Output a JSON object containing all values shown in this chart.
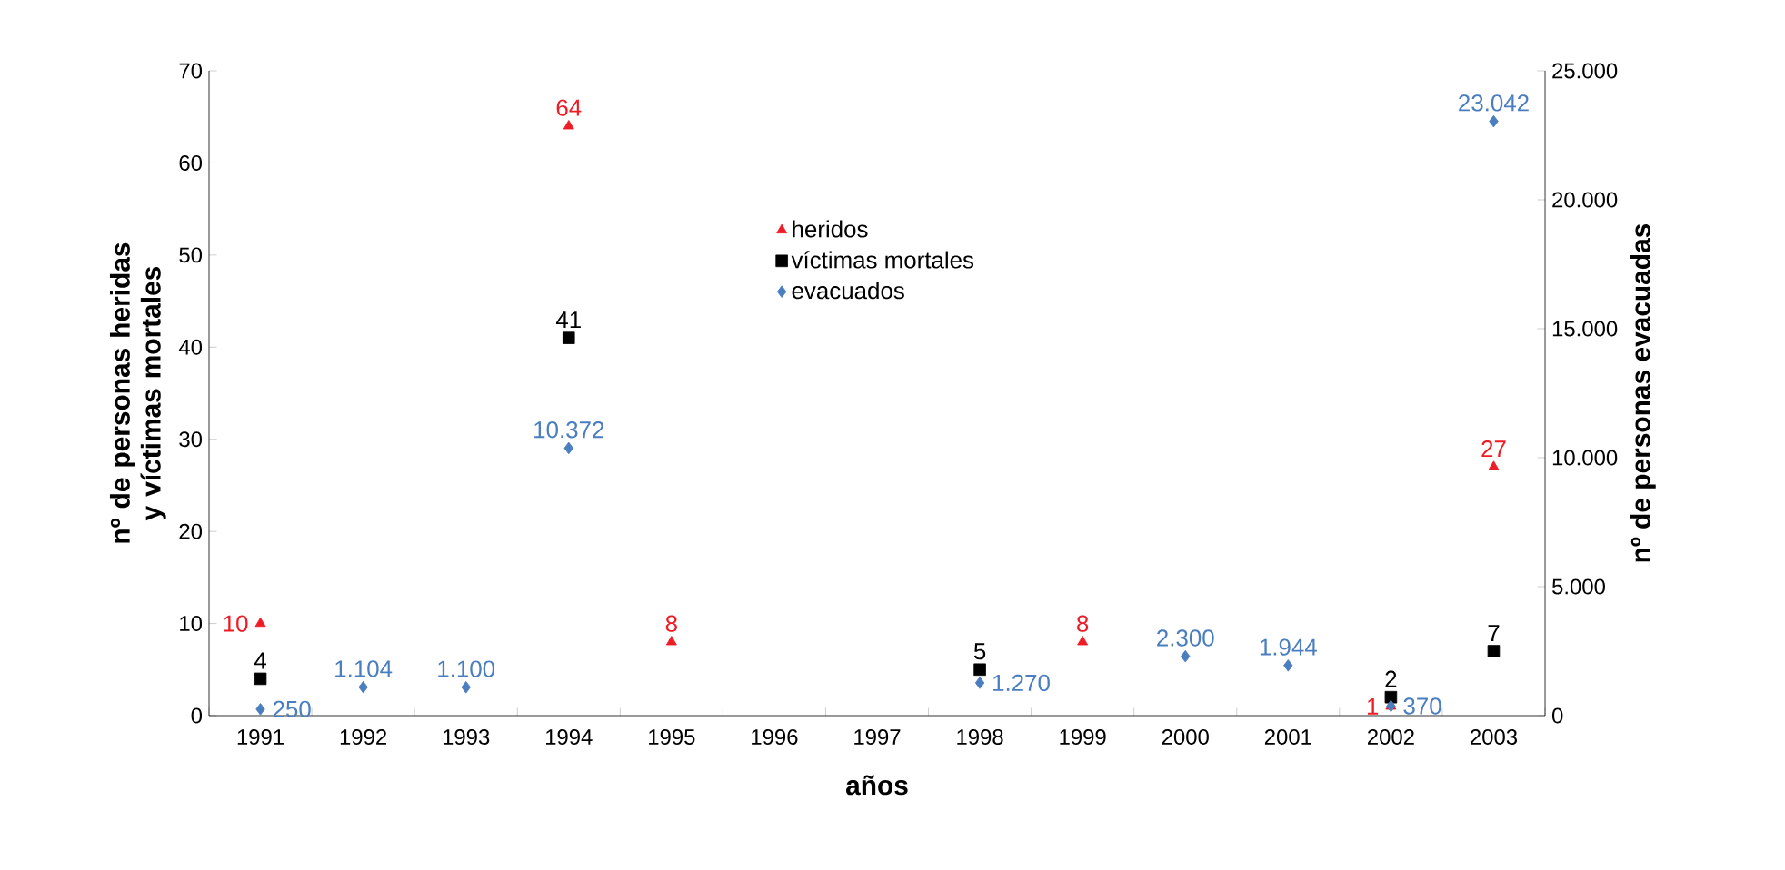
{
  "chart_data": {
    "type": "scatter",
    "xlabel": "años",
    "ylabel": "nº de personas heridas y víctimas mortales",
    "y2label": "nº de personas evacuadas",
    "categories": [
      "1991",
      "1992",
      "1993",
      "1994",
      "1995",
      "1996",
      "1997",
      "1998",
      "1999",
      "2000",
      "2001",
      "2002",
      "2003"
    ],
    "ylim": [
      0,
      70
    ],
    "yticks": [
      0,
      10,
      20,
      30,
      40,
      50,
      60,
      70
    ],
    "y2lim": [
      0,
      25000
    ],
    "y2ticks": [
      0,
      {
        "value": 5000,
        "label": "5.000"
      },
      {
        "value": 10000,
        "label": "10.000"
      },
      {
        "value": 15000,
        "label": "15.000"
      },
      {
        "value": 20000,
        "label": "20.000"
      },
      {
        "value": 25000,
        "label": "25.000"
      }
    ],
    "grid": false,
    "legend": "top",
    "series": [
      {
        "name": "heridos",
        "color": "#ee1c25",
        "marker": "triangle",
        "values": [
          10,
          null,
          null,
          64,
          8,
          null,
          null,
          null,
          8,
          null,
          null,
          1,
          27
        ],
        "value_labels": [
          "10",
          null,
          null,
          "64",
          "8",
          null,
          null,
          null,
          "8",
          null,
          null,
          "1",
          "27"
        ]
      },
      {
        "name": "víctimas mortales",
        "color": "#000000",
        "marker": "square",
        "values": [
          4,
          null,
          null,
          41,
          null,
          null,
          null,
          5,
          null,
          null,
          null,
          2,
          7
        ],
        "value_labels": [
          "4",
          null,
          null,
          "41",
          null,
          null,
          null,
          "5",
          null,
          null,
          null,
          "2",
          "7"
        ]
      },
      {
        "name": "evacuados",
        "color": "#4a7ebf",
        "marker": "diamond",
        "axis": "y2",
        "values": [
          250,
          1104,
          1100,
          10372,
          null,
          null,
          null,
          1270,
          null,
          2300,
          1944,
          370,
          23042
        ],
        "value_labels": [
          "250",
          "1.104",
          "1.100",
          "10.372",
          null,
          null,
          null,
          "1.270",
          null,
          "2.300",
          "1.944",
          "370",
          "23.042"
        ]
      }
    ]
  }
}
